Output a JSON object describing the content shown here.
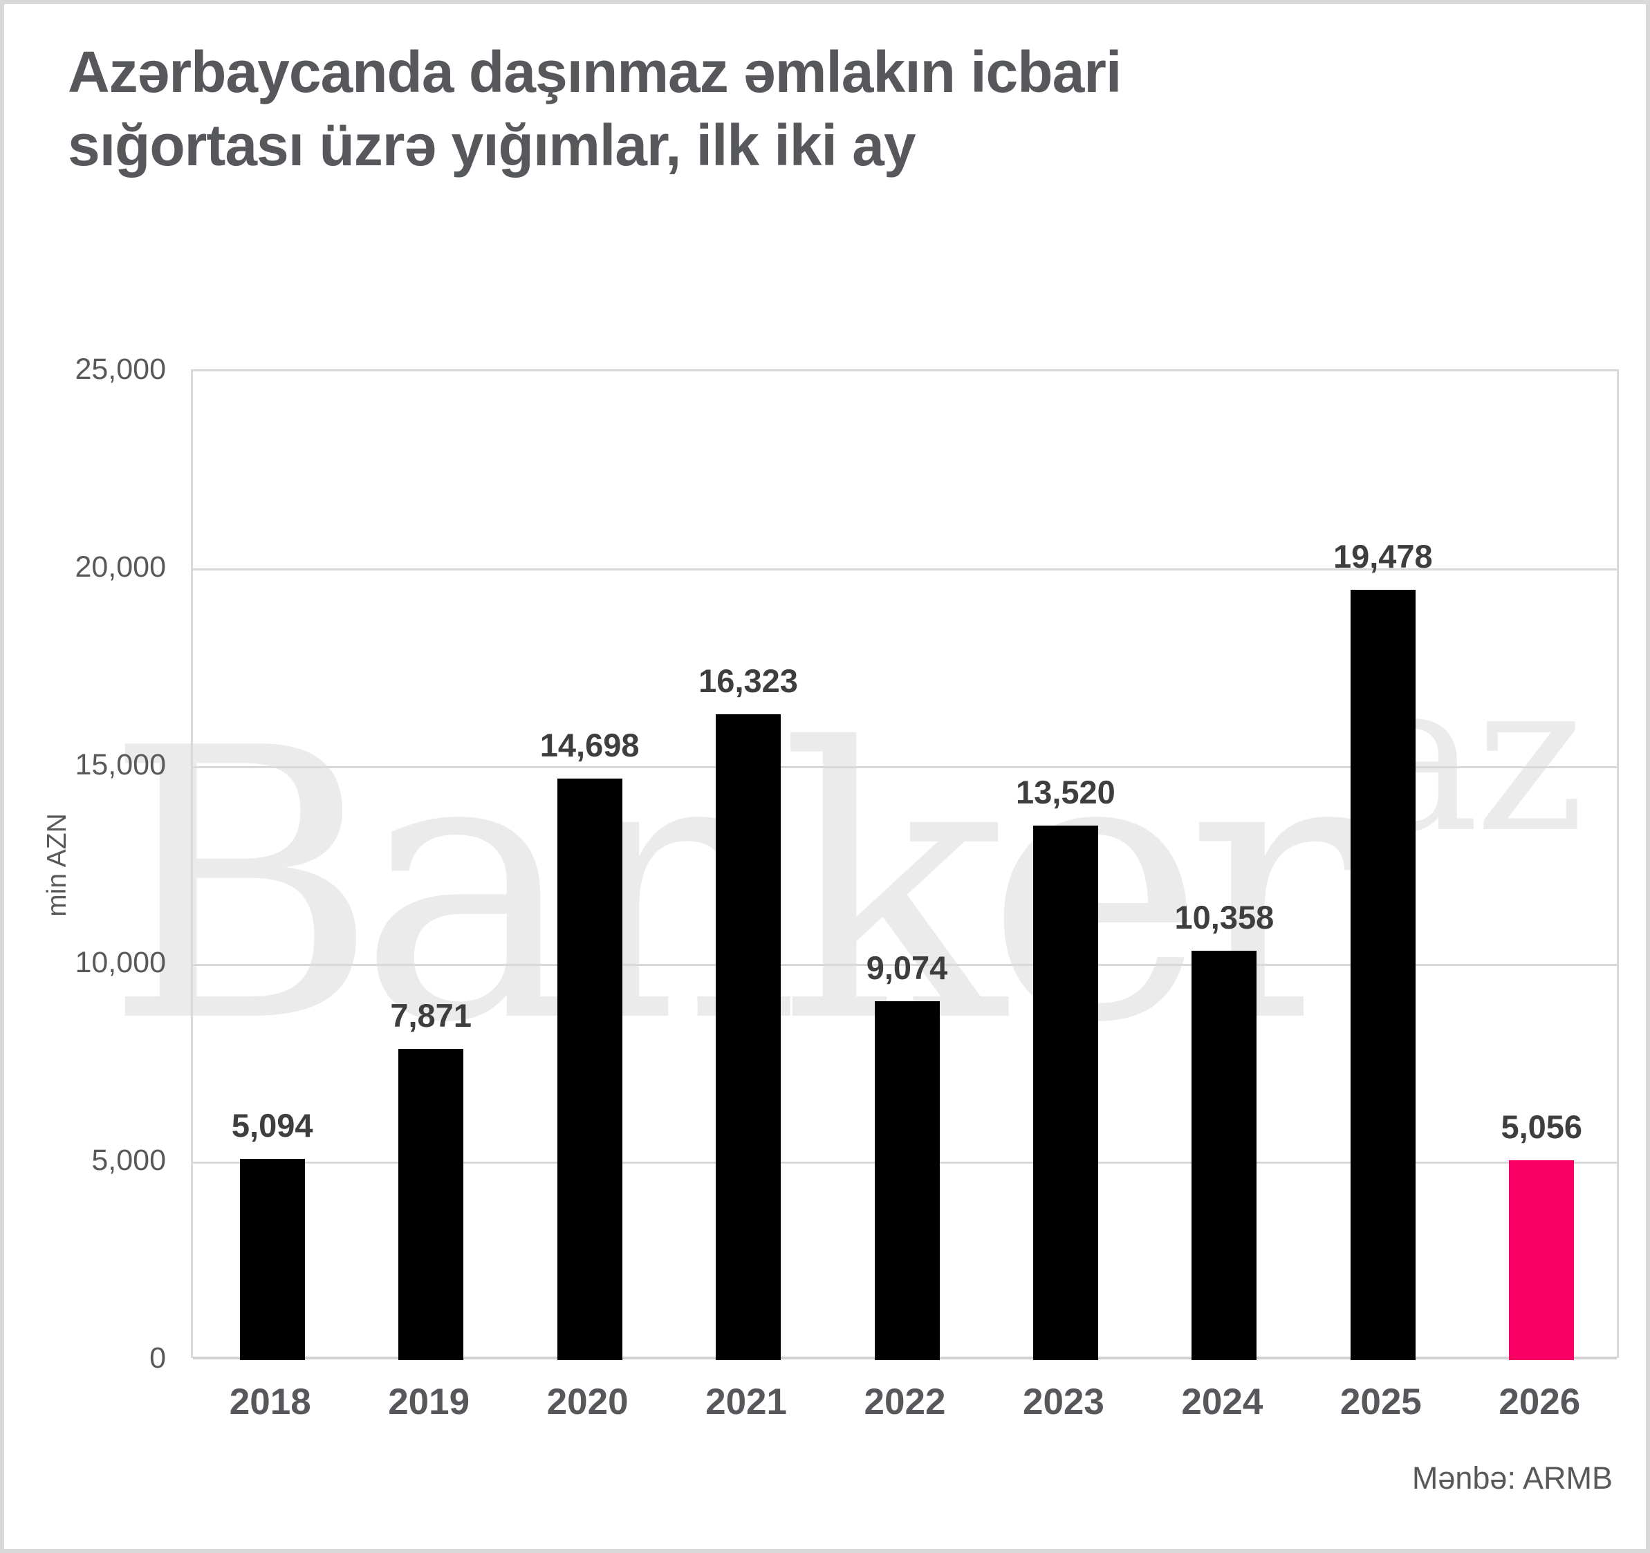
{
  "header": {
    "title_line1": "Azərbaycanda daşınmaz əmlakın icbari",
    "title_line2": "sığortası üzrə yığımlar, ilk iki ay"
  },
  "watermark": {
    "text": "Banker",
    "suffix": "az"
  },
  "footer": {
    "source": "Mənbə: ARMB"
  },
  "colors": {
    "bar_default": "#000000",
    "bar_highlight": "#fa0064",
    "gridline": "#d9d9d9",
    "title_text": "#57585b",
    "axis_text": "#595959",
    "value_label_text": "#3d3e40",
    "watermark_text": "#ebebeb"
  },
  "chart_data": {
    "type": "bar",
    "title": "Azərbaycanda daşınmaz əmlakın icbari sığortası üzrə yığımlar, ilk iki ay",
    "categories": [
      "2018",
      "2019",
      "2020",
      "2021",
      "2022",
      "2023",
      "2024",
      "2025",
      "2026"
    ],
    "values": [
      5094,
      7871,
      14698,
      16323,
      9074,
      13520,
      10358,
      19478,
      5056
    ],
    "value_labels": [
      "5,094",
      "7,871",
      "14,698",
      "16,323",
      "9,074",
      "13,520",
      "10,358",
      "19,478",
      "5,056"
    ],
    "highlight_index": 8,
    "xlabel": "",
    "ylabel": "min AZN",
    "ylim": [
      0,
      25000
    ],
    "ytick_step": 5000,
    "yticks": [
      "25,000",
      "20,000",
      "15,000",
      "10,000",
      "5,000",
      "0"
    ],
    "grid": "horizontal",
    "legend": "none"
  }
}
